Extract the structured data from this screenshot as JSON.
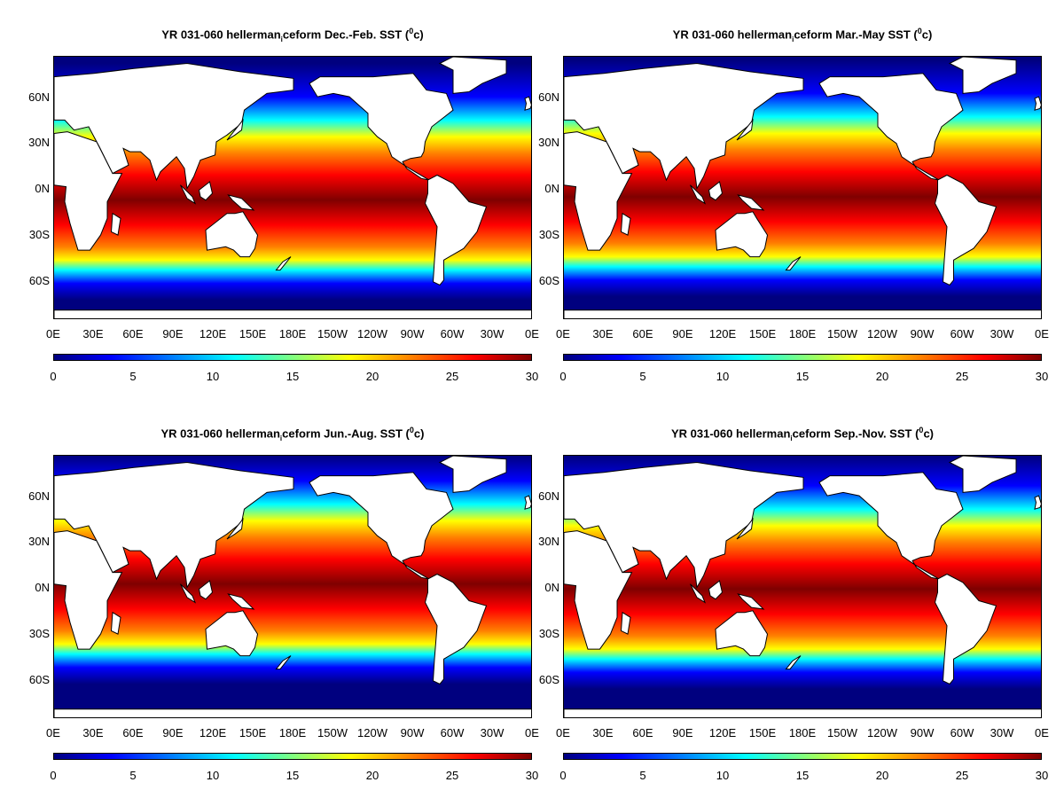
{
  "colors": {
    "deep_blue": "#00007f",
    "blue": "#0000ff",
    "cyan": "#00ffff",
    "green": "#80ff80",
    "yellow": "#ffff00",
    "orange": "#ff8000",
    "red": "#ff0000",
    "dark_red": "#7f0000",
    "land": "#ffffff"
  },
  "lat_labels": [
    "60N",
    "30N",
    "0N",
    "30S",
    "60S"
  ],
  "lon_labels": [
    "0E",
    "30E",
    "60E",
    "90E",
    "120E",
    "150E",
    "180E",
    "150W",
    "120W",
    "90W",
    "60W",
    "30W",
    "0E"
  ],
  "colorbar_ticks": [
    "0",
    "5",
    "10",
    "15",
    "20",
    "25",
    "30"
  ],
  "panels": [
    {
      "title_pre": "YR 031-060 hellerman",
      "title_sub": "i",
      "title_mid": "ceform Dec.-Feb. SST (",
      "title_sup": "0",
      "title_post": "c)"
    },
    {
      "title_pre": "YR 031-060 hellerman",
      "title_sub": "i",
      "title_mid": "ceform Mar.-May SST (",
      "title_sup": "0",
      "title_post": "c)"
    },
    {
      "title_pre": "YR 031-060 hellerman",
      "title_sub": "i",
      "title_mid": "ceform Jun.-Aug. SST (",
      "title_sup": "0",
      "title_post": "c)"
    },
    {
      "title_pre": "YR 031-060 hellerman",
      "title_sub": "i",
      "title_mid": "ceform Sep.-Nov. SST (",
      "title_sup": "0",
      "title_post": "c)"
    }
  ]
}
